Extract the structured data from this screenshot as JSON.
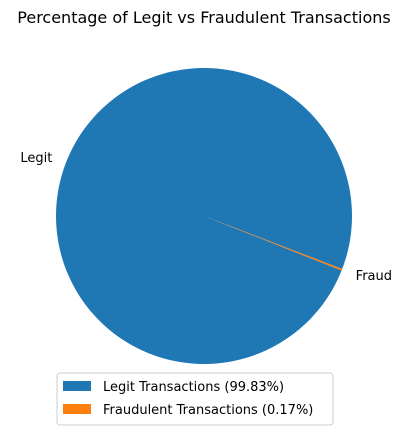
{
  "chart_data": {
    "type": "pie",
    "title": "Percentage of Legit vs Fraudulent Transactions",
    "slices": [
      {
        "label": "Legit",
        "value": 99.83,
        "color": "#1f77b4"
      },
      {
        "label": "Fraud",
        "value": 0.17,
        "color": "#ff7f0e"
      }
    ],
    "start_angle_deg": -21,
    "legend": {
      "position": "bottom",
      "entries": [
        {
          "label": "Legit Transactions (99.83%)",
          "color": "#1f77b4"
        },
        {
          "label": "Fraudulent Transactions (0.17%)",
          "color": "#ff7f0e"
        }
      ]
    }
  }
}
